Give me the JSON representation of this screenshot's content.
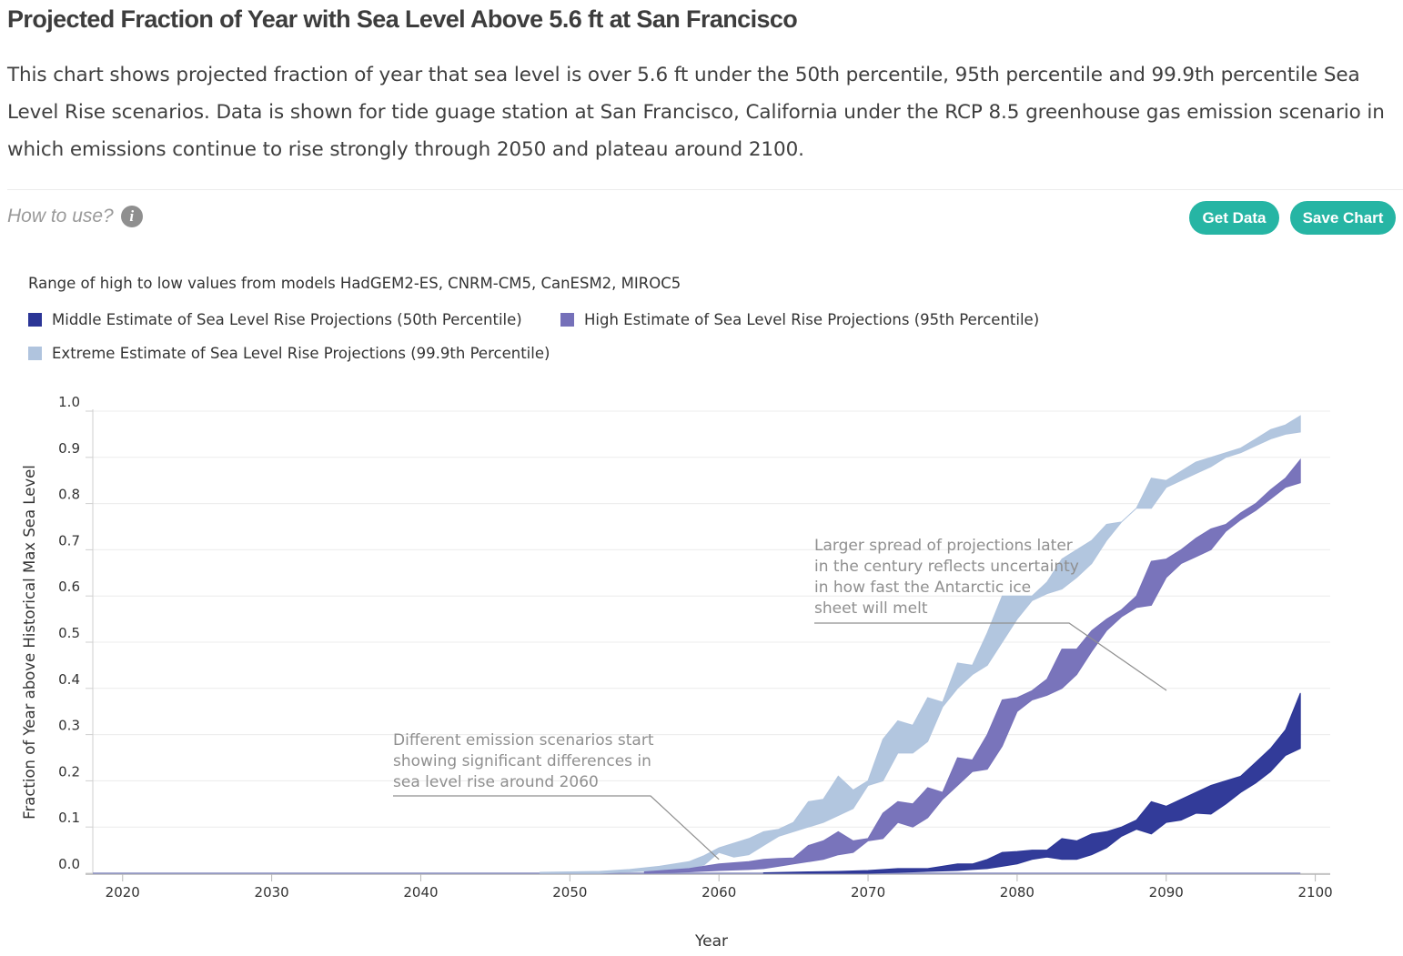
{
  "page": {
    "title": "Projected Fraction of Year with Sea Level Above 5.6 ft at San Francisco",
    "description": "This chart shows projected fraction of year that sea level is over 5.6 ft under the 50th percentile, 95th percentile and 99.9th percentile Sea Level Rise scenarios. Data is shown for tide guage station at San Francisco, California under the RCP 8.5 greenhouse gas emission scenario in which emissions continue to rise strongly through 2050 and plateau around 2100.",
    "how_to_use": "How to use?",
    "info_glyph": "i",
    "buttons": {
      "get_data": "Get Data",
      "save_chart": "Save Chart"
    },
    "colors": {
      "accent": "#26b5a4"
    }
  },
  "chart_data": {
    "type": "area",
    "subtitle": "Range of high to low values from models HadGEM2-ES, CNRM-CM5, CanESM2, MIROC5",
    "xlabel": "Year",
    "ylabel": "Fraction of Year above Historical Max Sea Level",
    "xlim": [
      2018,
      2101
    ],
    "ylim": [
      0,
      1
    ],
    "x_ticks": [
      2020,
      2030,
      2040,
      2050,
      2060,
      2070,
      2080,
      2090,
      2100
    ],
    "y_ticks": [
      "0.0",
      "0.1",
      "0.2",
      "0.3",
      "0.4",
      "0.5",
      "0.6",
      "0.7",
      "0.8",
      "0.9",
      "1.0"
    ],
    "grid": true,
    "legend_position": "top-left",
    "series": [
      {
        "name": "Extreme Estimate of Sea Level Rise Projections (99.9th Percentile)",
        "color": "#b0c4de",
        "x": [
          2048,
          2052,
          2054,
          2056,
          2058,
          2059,
          2060,
          2061,
          2062,
          2063,
          2064,
          2065,
          2066,
          2067,
          2068,
          2069,
          2070,
          2071,
          2072,
          2073,
          2074,
          2075,
          2076,
          2077,
          2078,
          2079,
          2080,
          2081,
          2082,
          2083,
          2084,
          2085,
          2086,
          2087,
          2088,
          2089,
          2090,
          2091,
          2092,
          2093,
          2094,
          2095,
          2096,
          2097,
          2098,
          2099
        ],
        "high": [
          0.002,
          0.004,
          0.008,
          0.015,
          0.025,
          0.038,
          0.055,
          0.065,
          0.075,
          0.09,
          0.095,
          0.11,
          0.155,
          0.16,
          0.21,
          0.18,
          0.2,
          0.29,
          0.33,
          0.32,
          0.38,
          0.37,
          0.455,
          0.45,
          0.52,
          0.6,
          0.6,
          0.6,
          0.63,
          0.68,
          0.7,
          0.72,
          0.755,
          0.76,
          0.79,
          0.855,
          0.85,
          0.87,
          0.89,
          0.9,
          0.91,
          0.92,
          0.94,
          0.96,
          0.97,
          0.99
        ],
        "low": [
          0.0,
          0.0,
          0.003,
          0.006,
          0.01,
          0.018,
          0.045,
          0.035,
          0.04,
          0.06,
          0.08,
          0.09,
          0.1,
          0.11,
          0.125,
          0.14,
          0.19,
          0.2,
          0.26,
          0.26,
          0.285,
          0.36,
          0.4,
          0.43,
          0.45,
          0.5,
          0.55,
          0.59,
          0.605,
          0.615,
          0.64,
          0.67,
          0.72,
          0.76,
          0.79,
          0.79,
          0.835,
          0.85,
          0.865,
          0.88,
          0.9,
          0.91,
          0.925,
          0.94,
          0.95,
          0.955
        ]
      },
      {
        "name": "High Estimate of Sea Level Rise Projections (95th Percentile)",
        "color": "#7570b9",
        "x": [
          2055,
          2058,
          2060,
          2062,
          2063,
          2064,
          2065,
          2066,
          2067,
          2068,
          2069,
          2070,
          2071,
          2072,
          2073,
          2074,
          2075,
          2076,
          2077,
          2078,
          2079,
          2080,
          2081,
          2082,
          2083,
          2084,
          2085,
          2086,
          2087,
          2088,
          2089,
          2090,
          2091,
          2092,
          2093,
          2094,
          2095,
          2096,
          2097,
          2098,
          2099
        ],
        "high": [
          0.003,
          0.01,
          0.02,
          0.025,
          0.03,
          0.032,
          0.033,
          0.06,
          0.07,
          0.09,
          0.07,
          0.075,
          0.13,
          0.155,
          0.15,
          0.185,
          0.175,
          0.25,
          0.245,
          0.3,
          0.375,
          0.38,
          0.395,
          0.42,
          0.485,
          0.485,
          0.525,
          0.55,
          0.57,
          0.6,
          0.675,
          0.68,
          0.7,
          0.725,
          0.745,
          0.755,
          0.78,
          0.8,
          0.83,
          0.855,
          0.895
        ],
        "low": [
          0.0,
          0.003,
          0.006,
          0.008,
          0.01,
          0.015,
          0.02,
          0.025,
          0.03,
          0.04,
          0.045,
          0.07,
          0.075,
          0.11,
          0.1,
          0.12,
          0.16,
          0.19,
          0.22,
          0.225,
          0.275,
          0.35,
          0.375,
          0.385,
          0.4,
          0.43,
          0.48,
          0.525,
          0.555,
          0.575,
          0.58,
          0.64,
          0.67,
          0.685,
          0.7,
          0.74,
          0.765,
          0.785,
          0.81,
          0.835,
          0.845
        ]
      },
      {
        "name": "Middle Estimate of Sea Level Rise Projections (50th Percentile)",
        "color": "#2b3596",
        "x": [
          2063,
          2066,
          2068,
          2070,
          2072,
          2074,
          2076,
          2077,
          2078,
          2079,
          2080,
          2081,
          2082,
          2083,
          2084,
          2085,
          2086,
          2087,
          2088,
          2089,
          2090,
          2091,
          2092,
          2093,
          2094,
          2095,
          2096,
          2097,
          2098,
          2099
        ],
        "high": [
          0.001,
          0.003,
          0.004,
          0.006,
          0.01,
          0.01,
          0.02,
          0.02,
          0.03,
          0.045,
          0.047,
          0.05,
          0.05,
          0.075,
          0.07,
          0.085,
          0.09,
          0.1,
          0.115,
          0.155,
          0.145,
          0.16,
          0.175,
          0.19,
          0.2,
          0.21,
          0.24,
          0.27,
          0.31,
          0.39
        ],
        "low": [
          0.0,
          0.0,
          0.0,
          0.0,
          0.002,
          0.004,
          0.006,
          0.008,
          0.01,
          0.015,
          0.02,
          0.03,
          0.035,
          0.03,
          0.03,
          0.04,
          0.055,
          0.08,
          0.095,
          0.085,
          0.11,
          0.115,
          0.13,
          0.128,
          0.15,
          0.175,
          0.195,
          0.22,
          0.255,
          0.27
        ]
      }
    ],
    "legend": [
      {
        "label": "Middle Estimate of Sea Level Rise Projections (50th Percentile)",
        "color": "#2b3596"
      },
      {
        "label": "High Estimate of Sea Level Rise Projections (95th Percentile)",
        "color": "#7570b9"
      },
      {
        "label": "Extreme Estimate of Sea Level Rise Projections (99.9th Percentile)",
        "color": "#b0c4de"
      }
    ],
    "annotations": [
      {
        "lines": [
          "Different emission scenarios start",
          "showing significant differences in",
          "sea level rise around 2060"
        ],
        "anchor_year": 2060,
        "anchor_value": 0.005
      },
      {
        "lines": [
          "Larger spread of projections later",
          "in the century reflects uncertainty",
          "in how fast the Antarctic ice",
          "sheet will melt"
        ],
        "anchor_year": 2090,
        "anchor_value": 0.395
      }
    ]
  }
}
